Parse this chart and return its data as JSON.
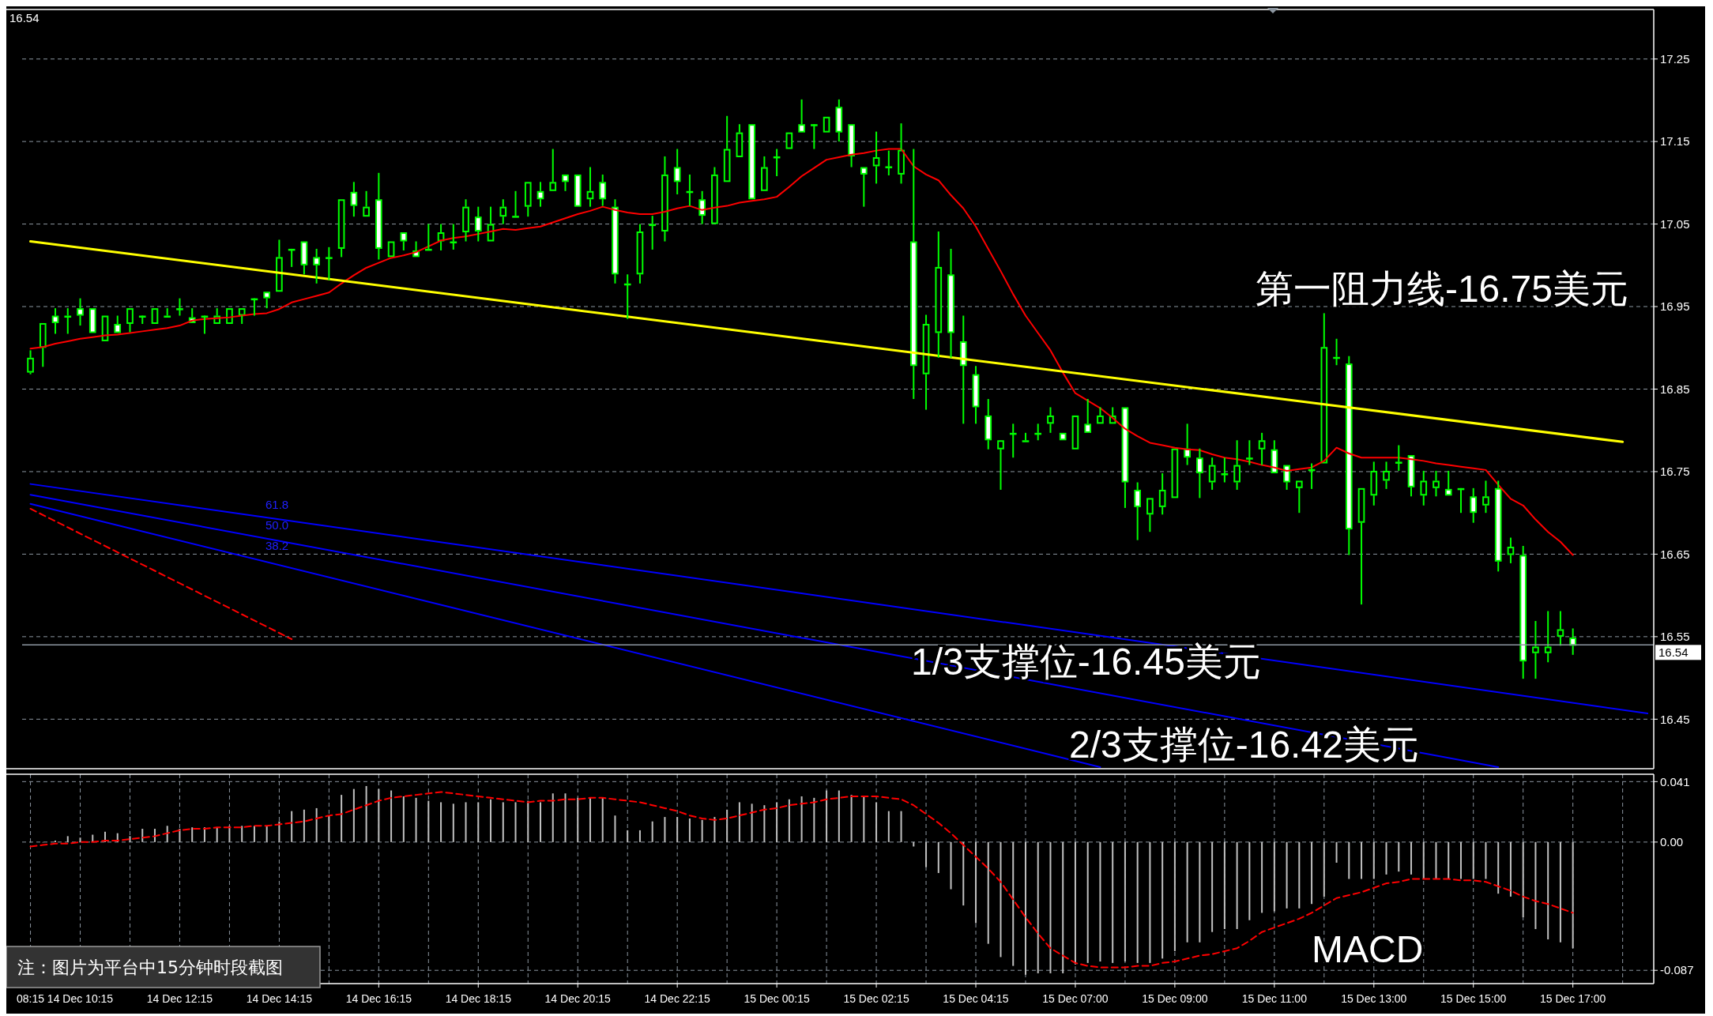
{
  "chart_data": [
    {
      "type": "candlestick",
      "color": "#00ff00",
      "ohlc": [
        [
          16.87,
          16.897,
          16.868,
          16.888
        ],
        [
          16.9,
          16.93,
          16.877,
          16.93
        ],
        [
          16.939,
          16.948,
          16.917,
          16.93
        ],
        [
          16.938,
          16.948,
          16.917,
          16.939
        ],
        [
          16.948,
          16.96,
          16.927,
          16.939
        ],
        [
          16.948,
          16.948,
          16.918,
          16.918
        ],
        [
          16.908,
          16.939,
          16.908,
          16.939
        ],
        [
          16.929,
          16.939,
          16.917,
          16.918
        ],
        [
          16.929,
          16.948,
          16.919,
          16.948
        ],
        [
          16.939,
          16.939,
          16.929,
          16.939
        ],
        [
          16.929,
          16.948,
          16.929,
          16.948
        ],
        [
          16.939,
          16.948,
          16.939,
          16.939
        ],
        [
          16.948,
          16.96,
          16.939,
          16.948
        ],
        [
          16.937,
          16.948,
          16.929,
          16.93
        ],
        [
          16.939,
          16.939,
          16.917,
          16.939
        ],
        [
          16.929,
          16.948,
          16.929,
          16.939
        ],
        [
          16.929,
          16.948,
          16.929,
          16.948
        ],
        [
          16.939,
          16.948,
          16.929,
          16.948
        ],
        [
          16.96,
          16.96,
          16.939,
          16.96
        ],
        [
          16.968,
          16.968,
          16.948,
          16.96
        ],
        [
          16.968,
          17.031,
          16.968,
          17.01
        ],
        [
          17.02,
          17.02,
          16.998,
          17.02
        ],
        [
          17.029,
          17.029,
          16.989,
          17.0
        ],
        [
          17.01,
          17.02,
          16.978,
          17.0
        ],
        [
          17.01,
          17.022,
          16.982,
          17.01
        ],
        [
          17.02,
          17.08,
          17.01,
          17.08
        ],
        [
          17.089,
          17.101,
          17.059,
          17.072
        ],
        [
          17.059,
          17.09,
          17.059,
          17.071
        ],
        [
          17.08,
          17.112,
          17.007,
          17.02
        ],
        [
          17.01,
          17.029,
          17.01,
          17.029
        ],
        [
          17.04,
          17.04,
          17.018,
          17.029
        ],
        [
          17.018,
          17.029,
          17.01,
          17.01
        ],
        [
          17.02,
          17.05,
          17.018,
          17.02
        ],
        [
          17.029,
          17.05,
          17.018,
          17.04
        ],
        [
          17.029,
          17.05,
          17.019,
          17.029
        ],
        [
          17.04,
          17.08,
          17.029,
          17.071
        ],
        [
          17.059,
          17.071,
          17.029,
          17.041
        ],
        [
          17.029,
          17.071,
          17.029,
          17.05
        ],
        [
          17.059,
          17.08,
          17.05,
          17.071
        ],
        [
          17.06,
          17.09,
          17.059,
          17.06
        ],
        [
          17.071,
          17.101,
          17.059,
          17.101
        ],
        [
          17.09,
          17.101,
          17.071,
          17.08
        ],
        [
          17.09,
          17.141,
          17.09,
          17.101
        ],
        [
          17.11,
          17.11,
          17.09,
          17.101
        ],
        [
          17.11,
          17.11,
          17.071,
          17.071
        ],
        [
          17.08,
          17.119,
          17.071,
          17.09
        ],
        [
          17.101,
          17.11,
          17.072,
          17.08
        ],
        [
          17.071,
          17.08,
          16.978,
          16.989
        ],
        [
          16.978,
          16.989,
          16.935,
          16.978
        ],
        [
          16.989,
          17.05,
          16.978,
          17.041
        ],
        [
          17.05,
          17.06,
          17.019,
          17.05
        ],
        [
          17.041,
          17.132,
          17.029,
          17.11
        ],
        [
          17.119,
          17.141,
          17.086,
          17.101
        ],
        [
          17.09,
          17.11,
          17.072,
          17.09
        ],
        [
          17.08,
          17.09,
          17.05,
          17.06
        ],
        [
          17.05,
          17.119,
          17.05,
          17.11
        ],
        [
          17.101,
          17.181,
          17.101,
          17.141
        ],
        [
          17.131,
          17.171,
          17.131,
          17.161
        ],
        [
          17.171,
          17.171,
          17.08,
          17.08
        ],
        [
          17.09,
          17.132,
          17.09,
          17.119
        ],
        [
          17.132,
          17.141,
          17.108,
          17.132
        ],
        [
          17.141,
          17.161,
          17.141,
          17.161
        ],
        [
          17.171,
          17.201,
          17.161,
          17.161
        ],
        [
          17.171,
          17.171,
          17.141,
          17.171
        ],
        [
          17.161,
          17.18,
          17.161,
          17.18
        ],
        [
          17.192,
          17.201,
          17.15,
          17.161
        ],
        [
          17.171,
          17.171,
          17.119,
          17.132
        ],
        [
          17.119,
          17.119,
          17.071,
          17.11
        ],
        [
          17.12,
          17.162,
          17.099,
          17.131
        ],
        [
          17.12,
          17.139,
          17.109,
          17.12
        ],
        [
          17.11,
          17.172,
          17.099,
          17.14
        ],
        [
          17.029,
          17.141,
          16.838,
          16.878
        ],
        [
          16.868,
          16.94,
          16.825,
          16.929
        ],
        [
          16.918,
          17.041,
          16.888,
          16.998
        ],
        [
          16.989,
          17.02,
          16.888,
          16.918
        ],
        [
          16.908,
          16.939,
          16.808,
          16.878
        ],
        [
          16.868,
          16.878,
          16.808,
          16.828
        ],
        [
          16.818,
          16.838,
          16.777,
          16.788
        ],
        [
          16.777,
          16.788,
          16.728,
          16.788
        ],
        [
          16.797,
          16.808,
          16.767,
          16.797
        ],
        [
          16.788,
          16.797,
          16.788,
          16.788
        ],
        [
          16.797,
          16.808,
          16.788,
          16.797
        ],
        [
          16.808,
          16.828,
          16.797,
          16.818
        ],
        [
          16.797,
          16.797,
          16.788,
          16.788
        ],
        [
          16.777,
          16.818,
          16.777,
          16.818
        ],
        [
          16.808,
          16.838,
          16.797,
          16.797
        ],
        [
          16.808,
          16.828,
          16.808,
          16.818
        ],
        [
          16.808,
          16.828,
          16.808,
          16.818
        ],
        [
          16.828,
          16.828,
          16.706,
          16.737
        ],
        [
          16.728,
          16.737,
          16.667,
          16.707
        ],
        [
          16.698,
          16.718,
          16.677,
          16.718
        ],
        [
          16.707,
          16.748,
          16.698,
          16.728
        ],
        [
          16.718,
          16.778,
          16.718,
          16.778
        ],
        [
          16.778,
          16.808,
          16.758,
          16.767
        ],
        [
          16.767,
          16.778,
          16.718,
          16.748
        ],
        [
          16.737,
          16.767,
          16.728,
          16.758
        ],
        [
          16.748,
          16.767,
          16.737,
          16.748
        ],
        [
          16.737,
          16.788,
          16.728,
          16.758
        ],
        [
          16.767,
          16.788,
          16.758,
          16.767
        ],
        [
          16.777,
          16.797,
          16.758,
          16.788
        ],
        [
          16.777,
          16.788,
          16.748,
          16.748
        ],
        [
          16.758,
          16.758,
          16.728,
          16.737
        ],
        [
          16.73,
          16.739,
          16.7,
          16.739
        ],
        [
          16.753,
          16.76,
          16.729,
          16.753
        ],
        [
          16.76,
          16.942,
          16.76,
          16.901
        ],
        [
          16.889,
          16.911,
          16.879,
          16.889
        ],
        [
          16.881,
          16.89,
          16.649,
          16.68
        ],
        [
          16.688,
          16.73,
          16.589,
          16.73
        ],
        [
          16.721,
          16.762,
          16.709,
          16.751
        ],
        [
          16.739,
          16.762,
          16.729,
          16.751
        ],
        [
          16.762,
          16.782,
          16.751,
          16.762
        ],
        [
          16.77,
          16.77,
          16.72,
          16.731
        ],
        [
          16.721,
          16.751,
          16.709,
          16.739
        ],
        [
          16.73,
          16.751,
          16.72,
          16.739
        ],
        [
          16.729,
          16.751,
          16.721,
          16.721
        ],
        [
          16.73,
          16.73,
          16.7,
          16.73
        ],
        [
          16.72,
          16.73,
          16.688,
          16.7
        ],
        [
          16.709,
          16.739,
          16.7,
          16.72
        ],
        [
          16.73,
          16.739,
          16.629,
          16.641
        ],
        [
          16.649,
          16.67,
          16.639,
          16.659
        ],
        [
          16.649,
          16.66,
          16.499,
          16.52
        ],
        [
          16.53,
          16.569,
          16.499,
          16.538
        ],
        [
          16.53,
          16.581,
          16.519,
          16.538
        ],
        [
          16.55,
          16.581,
          16.539,
          16.559
        ],
        [
          16.549,
          16.56,
          16.528,
          16.539
        ],
        null,
        null,
        null,
        null,
        null,
        null
      ],
      "series": [
        {
          "type": "line",
          "color": "#ff0000",
          "values": [
            16.899,
            16.901,
            16.905,
            16.908,
            16.911,
            16.913,
            16.915,
            16.916,
            16.918,
            16.92,
            16.922,
            16.924,
            16.927,
            16.933,
            16.935,
            16.936,
            16.937,
            16.939,
            16.941,
            16.942,
            16.947,
            16.955,
            16.959,
            16.963,
            16.967,
            16.978,
            16.988,
            16.997,
            17.003,
            17.009,
            17.012,
            17.016,
            17.023,
            17.03,
            17.033,
            17.035,
            17.038,
            17.041,
            17.044,
            17.043,
            17.045,
            17.047,
            17.052,
            17.057,
            17.062,
            17.066,
            17.071,
            17.067,
            17.064,
            17.062,
            17.062,
            17.065,
            17.069,
            17.072,
            17.067,
            17.07,
            17.072,
            17.076,
            17.078,
            17.08,
            17.083,
            17.095,
            17.108,
            17.118,
            17.128,
            17.131,
            17.134,
            17.136,
            17.139,
            17.141,
            17.141,
            17.12,
            17.11,
            17.103,
            17.085,
            17.069,
            17.047,
            17.02,
            16.993,
            16.965,
            16.939,
            16.918,
            16.897,
            16.87,
            16.845,
            16.836,
            16.827,
            16.815,
            16.802,
            16.793,
            16.785,
            16.782,
            16.779,
            16.777,
            16.776,
            16.771,
            16.767,
            16.765,
            16.762,
            16.758,
            16.755,
            16.751,
            16.753,
            16.755,
            16.763,
            16.779,
            16.772,
            16.767,
            16.767,
            16.767,
            16.767,
            16.765,
            16.763,
            16.76,
            16.758,
            16.756,
            16.754,
            16.752,
            16.734,
            16.717,
            16.709,
            16.692,
            16.677,
            16.665,
            16.649,
            null,
            null,
            null,
            null,
            null,
            null
          ]
        },
        {
          "type": "line",
          "color": "#ffff00",
          "values": [
            17.029,
            null,
            null,
            null,
            null,
            null,
            null,
            null,
            null,
            null,
            null,
            null,
            null,
            null,
            null,
            null,
            null,
            null,
            null,
            null,
            null,
            null,
            null,
            null,
            null,
            null,
            null,
            null,
            null,
            null,
            null,
            null,
            null,
            null,
            null,
            null,
            null,
            null,
            null,
            null,
            null,
            null,
            null,
            null,
            null,
            null,
            null,
            null,
            null,
            null,
            null,
            null,
            null,
            null,
            null,
            null,
            null,
            null,
            null,
            null,
            null,
            null,
            null,
            null,
            null,
            null,
            null,
            null,
            null,
            null,
            null,
            null,
            null,
            null,
            null,
            null,
            null,
            null,
            null,
            null,
            null,
            null,
            null,
            null,
            null,
            null,
            null,
            null,
            null,
            null,
            null,
            null,
            null,
            null,
            null,
            null,
            null,
            null,
            null,
            null,
            null,
            null,
            null,
            null,
            null,
            null,
            null,
            null,
            null,
            null,
            null,
            null,
            null,
            null,
            null,
            null,
            null,
            null,
            null,
            null,
            null,
            null,
            null,
            null,
            null,
            null,
            null,
            null,
            16.786,
            null,
            null
          ]
        },
        {
          "type": "line",
          "color": "#0000ff",
          "values": [
            16.735,
            null,
            null,
            null,
            null,
            null,
            null,
            null,
            null,
            null,
            null,
            null,
            null,
            null,
            null,
            null,
            null,
            null,
            null,
            null,
            null,
            null,
            null,
            null,
            null,
            null,
            null,
            null,
            null,
            null,
            null,
            null,
            null,
            null,
            null,
            null,
            null,
            null,
            null,
            null,
            null,
            null,
            null,
            null,
            null,
            null,
            null,
            null,
            null,
            null,
            null,
            null,
            null,
            null,
            null,
            null,
            null,
            null,
            null,
            null,
            null,
            null,
            null,
            null,
            null,
            null,
            null,
            null,
            null,
            null,
            null,
            null,
            null,
            null,
            null,
            null,
            null,
            null,
            null,
            null,
            null,
            null,
            null,
            null,
            null,
            null,
            null,
            null,
            null,
            null,
            null,
            null,
            null,
            null,
            null,
            null,
            null,
            null,
            null,
            null,
            null,
            null,
            null,
            null,
            null,
            null,
            null,
            null,
            null,
            null,
            null,
            null,
            null,
            null,
            null,
            null,
            null,
            null,
            null,
            null,
            null,
            null,
            null,
            null,
            null,
            null,
            null,
            null,
            null,
            null,
            16.457
          ]
        },
        {
          "type": "line",
          "color": "#0000ff",
          "values": [
            16.722,
            null,
            null,
            null,
            null,
            null,
            null,
            null,
            null,
            null,
            null,
            null,
            null,
            null,
            null,
            null,
            null,
            null,
            null,
            null,
            null,
            null,
            null,
            null,
            null,
            null,
            null,
            null,
            null,
            null,
            null,
            null,
            null,
            null,
            null,
            null,
            null,
            null,
            null,
            null,
            null,
            null,
            null,
            null,
            null,
            null,
            null,
            null,
            null,
            null,
            null,
            null,
            null,
            null,
            null,
            null,
            null,
            null,
            null,
            null,
            null,
            null,
            null,
            null,
            null,
            null,
            null,
            null,
            null,
            null,
            null,
            null,
            null,
            null,
            null,
            null,
            null,
            null,
            null,
            null,
            null,
            null,
            null,
            null,
            null,
            null,
            null,
            null,
            null,
            null,
            null,
            null,
            null,
            null,
            null,
            null,
            null,
            null,
            null,
            null,
            null,
            null,
            null,
            null,
            null,
            null,
            null,
            null,
            null,
            null,
            null,
            null,
            null,
            null,
            null,
            null,
            null,
            null,
            16.392,
            null,
            null,
            null,
            null,
            null,
            null,
            null,
            null,
            null,
            null,
            null,
            null
          ]
        },
        {
          "type": "line",
          "color": "#0000ff",
          "values": [
            16.711,
            null,
            null,
            null,
            null,
            null,
            null,
            null,
            null,
            null,
            null,
            null,
            null,
            null,
            null,
            null,
            null,
            null,
            null,
            null,
            null,
            null,
            null,
            null,
            null,
            null,
            null,
            null,
            null,
            null,
            null,
            null,
            null,
            null,
            null,
            null,
            null,
            null,
            null,
            null,
            null,
            null,
            null,
            null,
            null,
            null,
            null,
            null,
            null,
            null,
            null,
            null,
            null,
            null,
            null,
            null,
            null,
            null,
            null,
            null,
            null,
            null,
            null,
            null,
            null,
            null,
            null,
            null,
            null,
            null,
            null,
            null,
            null,
            null,
            null,
            null,
            null,
            null,
            null,
            null,
            null,
            null,
            null,
            null,
            null,
            null,
            16.392,
            null,
            null,
            null,
            null,
            null,
            null,
            null,
            null,
            null,
            null,
            null,
            null,
            null,
            null,
            null,
            null,
            null,
            null,
            null,
            null,
            null,
            null,
            null,
            null,
            null,
            null,
            null,
            null,
            null,
            null,
            null,
            null,
            null,
            null,
            null,
            null,
            null,
            null,
            null,
            null,
            null,
            null,
            null,
            null
          ]
        },
        {
          "type": "line",
          "color": "#ff0000",
          "line_style": "dashed",
          "values": [
            16.705,
            null,
            null,
            null,
            null,
            null,
            null,
            null,
            null,
            null,
            null,
            null,
            null,
            null,
            null,
            null,
            null,
            null,
            null,
            null,
            null,
            16.547,
            null,
            null,
            null,
            null,
            null,
            null,
            null,
            null,
            null,
            null,
            null,
            null,
            null,
            null,
            null,
            null,
            null,
            null,
            null,
            null,
            null,
            null,
            null,
            null,
            null,
            null,
            null,
            null,
            null,
            null,
            null,
            null,
            null,
            null,
            null,
            null,
            null,
            null,
            null,
            null,
            null,
            null,
            null,
            null,
            null,
            null,
            null,
            null,
            null,
            null,
            null,
            null,
            null,
            null,
            null,
            null,
            null,
            null,
            null,
            null,
            null,
            null,
            null,
            null,
            null,
            null,
            null,
            null,
            null,
            null,
            null,
            null,
            null,
            null,
            null,
            null,
            null,
            null,
            null,
            null,
            null,
            null,
            null,
            null,
            null,
            null,
            null,
            null,
            null,
            null,
            null,
            null,
            null,
            null,
            null,
            null,
            null,
            null,
            null,
            null,
            null,
            null,
            null,
            null,
            null,
            null,
            null,
            null,
            null
          ]
        }
      ],
      "ylim": [
        16.39,
        17.31
      ],
      "yticks": [
        16.45,
        16.55,
        16.65,
        16.75,
        16.85,
        16.95,
        17.05,
        17.15,
        17.25
      ],
      "grid": true,
      "tick_labels": "y",
      "ref_lines": [
        {
          "axis": "y",
          "value": 16.54,
          "label": "16.54",
          "color": "#8c96a0"
        }
      ],
      "annotations": [
        "16.54",
        "第一阻力线-16.75美元",
        "1/3支撑位-16.45美元",
        "2/3支撑位-16.42美元",
        "61.8",
        "50.0",
        "38.2"
      ]
    },
    {
      "type": "bar",
      "categories": [
        "08:15",
        null,
        null,
        null,
        "14 Dec 10:15",
        null,
        null,
        null,
        null,
        null,
        null,
        null,
        "14 Dec 12:15",
        null,
        null,
        null,
        null,
        null,
        null,
        null,
        "14 Dec 14:15",
        null,
        null,
        null,
        null,
        null,
        null,
        null,
        "14 Dec 16:15",
        null,
        null,
        null,
        null,
        null,
        null,
        null,
        "14 Dec 18:15",
        null,
        null,
        null,
        null,
        null,
        null,
        null,
        "14 Dec 20:15",
        null,
        null,
        null,
        null,
        null,
        null,
        null,
        "14 Dec 22:15",
        null,
        null,
        null,
        null,
        null,
        null,
        null,
        "15 Dec 00:15",
        null,
        null,
        null,
        null,
        null,
        null,
        null,
        "15 Dec 02:15",
        null,
        null,
        null,
        null,
        null,
        null,
        null,
        "15 Dec 04:15",
        null,
        null,
        null,
        null,
        null,
        null,
        null,
        "15 Dec 07:00",
        null,
        null,
        null,
        null,
        null,
        null,
        null,
        "15 Dec 09:00",
        null,
        null,
        null,
        null,
        null,
        null,
        null,
        "15 Dec 11:00",
        null,
        null,
        null,
        null,
        null,
        null,
        null,
        "15 Dec 13:00",
        null,
        null,
        null,
        null,
        null,
        null,
        null,
        "15 Dec 15:00",
        null,
        null,
        null,
        null,
        null,
        null,
        null,
        "15 Dec 17:00",
        null,
        null,
        null,
        null,
        null,
        null
      ],
      "series": [
        {
          "type": "bar",
          "color": "#c0c0c0",
          "values": [
            0,
            0,
            0.001,
            0.004,
            0.003,
            0.005,
            0.007,
            0.006,
            0.004,
            0.009,
            0.009,
            0.011,
            0.009,
            0.01,
            0.01,
            0.01,
            0.011,
            0.011,
            0.011,
            0.011,
            0.014,
            0.021,
            0.022,
            0.023,
            0.018,
            0.032,
            0.036,
            0.038,
            0.036,
            0.035,
            0.031,
            0.03,
            0.028,
            0.027,
            0.026,
            0.027,
            0.027,
            0.029,
            0.027,
            0.027,
            0.028,
            0.027,
            0.033,
            0.033,
            0.03,
            0.03,
            0.03,
            0.018,
            0.008,
            0.008,
            0.014,
            0.017,
            0.017,
            0.016,
            0.015,
            0.017,
            0.022,
            0.027,
            0.026,
            0.025,
            0.027,
            0.029,
            0.031,
            0.03,
            0.035,
            0.035,
            0.032,
            0.031,
            0.027,
            0.021,
            0.021,
            -0.003,
            -0.017,
            -0.021,
            -0.032,
            -0.043,
            -0.055,
            -0.069,
            -0.078,
            -0.084,
            -0.09,
            -0.089,
            -0.089,
            -0.089,
            -0.083,
            -0.082,
            -0.081,
            -0.082,
            -0.081,
            -0.082,
            -0.082,
            -0.079,
            -0.074,
            -0.068,
            -0.068,
            -0.061,
            -0.059,
            -0.059,
            -0.053,
            -0.048,
            -0.047,
            -0.045,
            -0.045,
            -0.042,
            -0.037,
            -0.014,
            -0.025,
            -0.025,
            -0.025,
            -0.022,
            -0.02,
            -0.022,
            -0.025,
            -0.025,
            -0.025,
            -0.025,
            -0.025,
            -0.025,
            -0.035,
            -0.037,
            -0.051,
            -0.059,
            -0.066,
            -0.068,
            -0.072,
            null,
            null,
            null,
            null,
            null,
            null
          ]
        },
        {
          "type": "line",
          "color": "#ff0000",
          "line_style": "dashed",
          "values": [
            -0.003,
            -0.002,
            -0.001,
            -0.001,
            0.0,
            0.0,
            0.001,
            0.001,
            0.002,
            0.003,
            0.004,
            0.006,
            0.008,
            0.009,
            0.009,
            0.01,
            0.01,
            0.01,
            0.011,
            0.011,
            0.012,
            0.013,
            0.014,
            0.016,
            0.018,
            0.019,
            0.022,
            0.025,
            0.028,
            0.03,
            0.031,
            0.032,
            0.033,
            0.034,
            0.033,
            0.032,
            0.031,
            0.03,
            0.029,
            0.028,
            0.027,
            0.028,
            0.028,
            0.029,
            0.029,
            0.03,
            0.03,
            0.029,
            0.028,
            0.027,
            0.025,
            0.023,
            0.021,
            0.018,
            0.016,
            0.015,
            0.016,
            0.018,
            0.02,
            0.022,
            0.023,
            0.025,
            0.026,
            0.027,
            0.029,
            0.03,
            0.031,
            0.031,
            0.031,
            0.03,
            0.029,
            0.025,
            0.019,
            0.013,
            0.006,
            -0.002,
            -0.01,
            -0.018,
            -0.027,
            -0.039,
            -0.051,
            -0.062,
            -0.072,
            -0.077,
            -0.082,
            -0.084,
            -0.085,
            -0.085,
            -0.085,
            -0.084,
            -0.084,
            -0.082,
            -0.081,
            -0.079,
            -0.077,
            -0.076,
            -0.074,
            -0.072,
            -0.067,
            -0.061,
            -0.058,
            -0.055,
            -0.052,
            -0.048,
            -0.043,
            -0.038,
            -0.036,
            -0.034,
            -0.031,
            -0.028,
            -0.027,
            -0.025,
            -0.025,
            -0.025,
            -0.025,
            -0.026,
            -0.026,
            -0.027,
            -0.03,
            -0.033,
            -0.037,
            -0.04,
            -0.042,
            -0.045,
            -0.048,
            null,
            null,
            null,
            null,
            null,
            null
          ]
        }
      ],
      "ylim": [
        -0.096,
        0.046
      ],
      "yticks": [
        0.041,
        {
          "value": 0,
          "label": "0.00"
        },
        -0.087
      ],
      "grid": true,
      "annotations": [
        "MACD",
        "注：图片为平台中15分钟时段截图"
      ]
    }
  ]
}
